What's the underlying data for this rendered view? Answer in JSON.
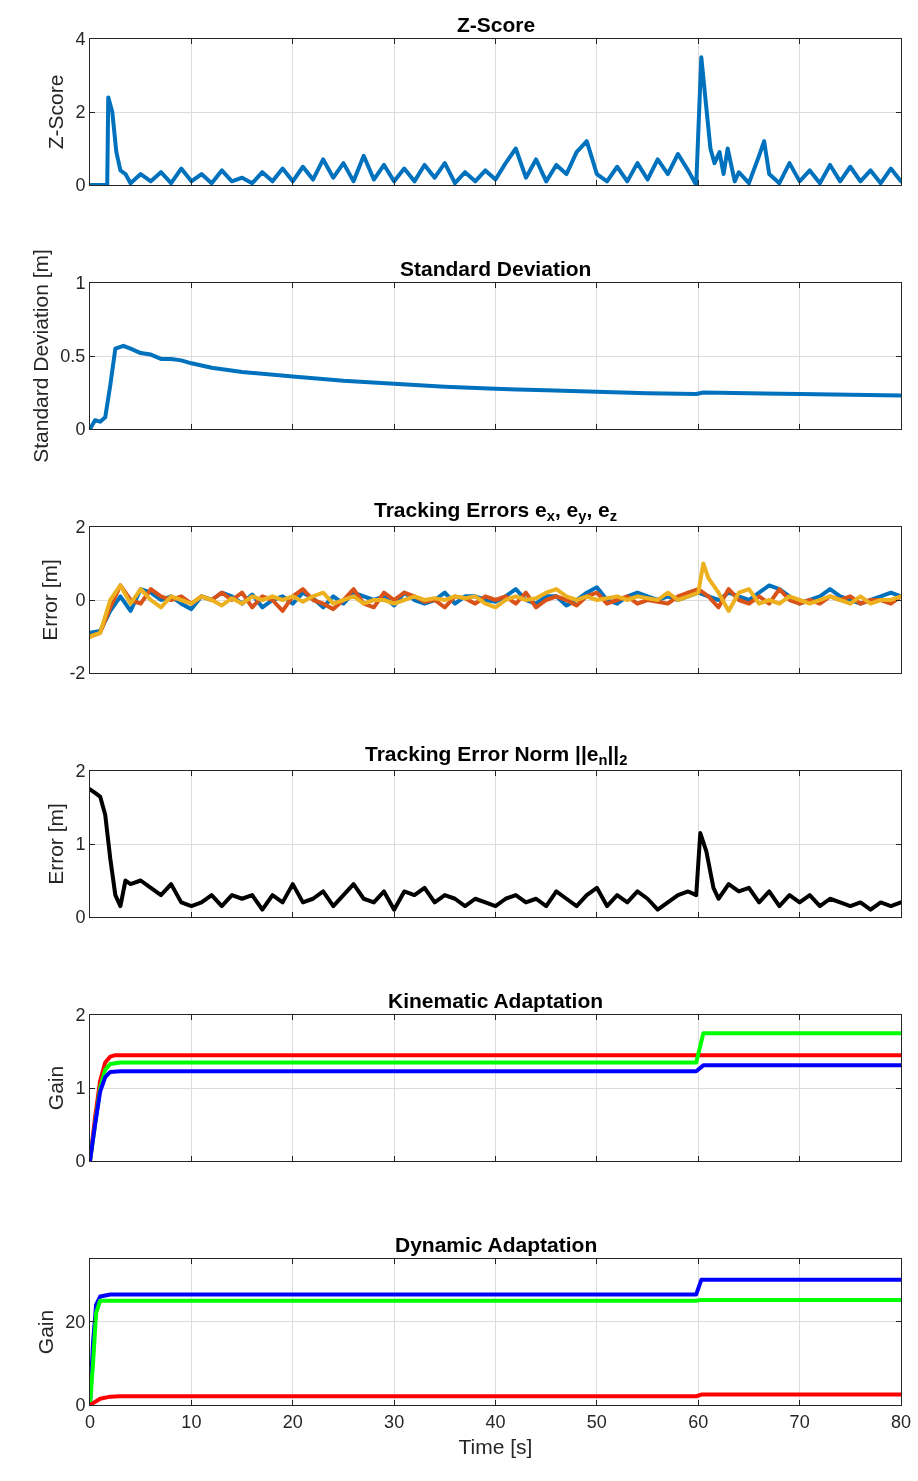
{
  "chart_data": [
    {
      "type": "line",
      "title": "Z-Score",
      "ylabel": "Z-Score",
      "xlim": [
        0,
        80
      ],
      "xticks": [
        0,
        10,
        20,
        30,
        40,
        50,
        60,
        70,
        80
      ],
      "ylim": [
        0,
        4
      ],
      "yticks": [
        0,
        2,
        4
      ],
      "grid": true,
      "tick_labels": "y",
      "series": [
        {
          "color": "#0072bd",
          "x": [
            0,
            1.7,
            1.8,
            2.2,
            2.6,
            3,
            3.5,
            4,
            5,
            6,
            7,
            8,
            9,
            10,
            11,
            12,
            13,
            14,
            15,
            16,
            17,
            18,
            19,
            20,
            21,
            22,
            23,
            24,
            25,
            26,
            27,
            28,
            29,
            30,
            31,
            32,
            33,
            34,
            35,
            36,
            37,
            38,
            39,
            40,
            41,
            42,
            43,
            44,
            45,
            46,
            47,
            48,
            49,
            50,
            51,
            52,
            53,
            54,
            55,
            56,
            57,
            58,
            59,
            59.8,
            60.3,
            61.2,
            61.6,
            62.1,
            62.5,
            62.9,
            63.6,
            64,
            65,
            66,
            66.5,
            67,
            68,
            69,
            70,
            71,
            72,
            73,
            74,
            75,
            76,
            77,
            78,
            79,
            80
          ],
          "values": [
            0,
            0,
            2.4,
            2.0,
            0.9,
            0.4,
            0.3,
            0.05,
            0.3,
            0.1,
            0.35,
            0.05,
            0.45,
            0.1,
            0.3,
            0.05,
            0.4,
            0.1,
            0.2,
            0.05,
            0.35,
            0.1,
            0.45,
            0.1,
            0.5,
            0.15,
            0.7,
            0.2,
            0.6,
            0.1,
            0.8,
            0.15,
            0.55,
            0.1,
            0.45,
            0.1,
            0.55,
            0.2,
            0.6,
            0.05,
            0.35,
            0.1,
            0.4,
            0.15,
            0.6,
            1.0,
            0.2,
            0.7,
            0.1,
            0.55,
            0.3,
            0.9,
            1.2,
            0.3,
            0.1,
            0.5,
            0.1,
            0.6,
            0.15,
            0.7,
            0.3,
            0.85,
            0.4,
            0,
            3.5,
            1.0,
            0.6,
            0.9,
            0.3,
            1.0,
            0.1,
            0.35,
            0.05,
            0.8,
            1.2,
            0.3,
            0.05,
            0.6,
            0.1,
            0.4,
            0.05,
            0.55,
            0.1,
            0.5,
            0.1,
            0.4,
            0.05,
            0.45,
            0.1
          ]
        }
      ]
    },
    {
      "type": "line",
      "title": "Standard Deviation",
      "ylabel": "Standard Deviation [m]",
      "xlim": [
        0,
        80
      ],
      "xticks": [
        0,
        10,
        20,
        30,
        40,
        50,
        60,
        70,
        80
      ],
      "ylim": [
        0,
        1
      ],
      "yticks": [
        0,
        0.5,
        1
      ],
      "grid": true,
      "tick_labels": "y",
      "series": [
        {
          "color": "#0072bd",
          "x": [
            0,
            0.5,
            1,
            1.5,
            2,
            2.5,
            3.3,
            4,
            5,
            6,
            7,
            8,
            9,
            10,
            12,
            15,
            20,
            25,
            30,
            35,
            40,
            45,
            50,
            55,
            59.8,
            60.5,
            65,
            70,
            75,
            80
          ],
          "values": [
            0,
            0.06,
            0.05,
            0.08,
            0.3,
            0.55,
            0.57,
            0.55,
            0.52,
            0.51,
            0.48,
            0.48,
            0.47,
            0.45,
            0.42,
            0.39,
            0.36,
            0.33,
            0.31,
            0.29,
            0.275,
            0.265,
            0.255,
            0.245,
            0.24,
            0.25,
            0.245,
            0.24,
            0.235,
            0.23
          ]
        }
      ]
    },
    {
      "type": "line",
      "title": "Tracking Errors e$_{x}$, e$_{y}$, e$_{z}$",
      "ylabel": "Error [m]",
      "xlim": [
        0,
        80
      ],
      "xticks": [
        0,
        10,
        20,
        30,
        40,
        50,
        60,
        70,
        80
      ],
      "ylim": [
        -2,
        2
      ],
      "yticks": [
        -2,
        0,
        2
      ],
      "grid": true,
      "tick_labels": "y",
      "series": [
        {
          "color": "#0072bd",
          "x": [
            0,
            1,
            2,
            3,
            4,
            5,
            6,
            7,
            8,
            9,
            10,
            11,
            12,
            13,
            14,
            15,
            16,
            17,
            18,
            19,
            20,
            21,
            22,
            23,
            24,
            25,
            26,
            27,
            28,
            29,
            30,
            31,
            32,
            33,
            34,
            35,
            36,
            37,
            38,
            39,
            40,
            41,
            42,
            43,
            44,
            45,
            46,
            47,
            48,
            49,
            50,
            51,
            52,
            53,
            54,
            55,
            56,
            57,
            58,
            59,
            60,
            61,
            62,
            63,
            64,
            65,
            66,
            67,
            68,
            69,
            70,
            71,
            72,
            73,
            74,
            75,
            76,
            77,
            78,
            79,
            80
          ],
          "values": [
            -0.9,
            -0.85,
            -0.3,
            0.1,
            -0.3,
            0.3,
            0.2,
            0.0,
            0.1,
            -0.1,
            -0.25,
            0.1,
            0.0,
            0.2,
            0.1,
            -0.1,
            0.15,
            -0.2,
            0.0,
            0.1,
            -0.1,
            0.2,
            0.05,
            -0.2,
            0.1,
            -0.1,
            0.2,
            0.1,
            0.0,
            0.1,
            -0.15,
            0.2,
            0.0,
            -0.1,
            0.0,
            0.2,
            -0.1,
            0.1,
            0.1,
            0.0,
            -0.05,
            0.1,
            0.3,
            0.0,
            -0.1,
            0.1,
            0.1,
            -0.15,
            0.0,
            0.2,
            0.35,
            0.0,
            -0.1,
            0.1,
            0.2,
            0.1,
            0.0,
            0.1,
            0.0,
            0.1,
            0.2,
            0.1,
            0.0,
            0.2,
            0.1,
            0.0,
            0.2,
            0.4,
            0.3,
            0.1,
            -0.1,
            0.0,
            0.1,
            0.3,
            0.1,
            0.0,
            -0.1,
            0.0,
            0.1,
            0.2,
            0.1
          ]
        },
        {
          "color": "#d95319",
          "x": [
            0,
            1,
            2,
            3,
            4,
            5,
            6,
            7,
            8,
            9,
            10,
            11,
            12,
            13,
            14,
            15,
            16,
            17,
            18,
            19,
            20,
            21,
            22,
            23,
            24,
            25,
            26,
            27,
            28,
            29,
            30,
            31,
            32,
            33,
            34,
            35,
            36,
            37,
            38,
            39,
            40,
            41,
            42,
            43,
            44,
            45,
            46,
            47,
            48,
            49,
            50,
            51,
            52,
            53,
            54,
            55,
            56,
            57,
            58,
            59,
            60,
            61,
            62,
            63,
            64,
            65,
            66,
            67,
            68,
            69,
            70,
            71,
            72,
            73,
            74,
            75,
            76,
            77,
            78,
            79,
            80
          ],
          "values": [
            -1.0,
            -0.9,
            -0.2,
            0.4,
            0.0,
            -0.1,
            0.3,
            0.1,
            0.0,
            0.1,
            -0.1,
            0.1,
            0.0,
            0.2,
            0.0,
            0.2,
            -0.2,
            0.1,
            0.0,
            -0.3,
            0.1,
            0.3,
            0.0,
            -0.1,
            -0.25,
            0.0,
            0.3,
            -0.1,
            -0.2,
            0.2,
            0.0,
            0.2,
            0.1,
            -0.05,
            0.0,
            -0.2,
            0.1,
            0.05,
            -0.1,
            0.1,
            0.0,
            0.1,
            -0.1,
            0.2,
            -0.2,
            0.0,
            0.1,
            0.0,
            -0.15,
            0.1,
            0.2,
            -0.1,
            0.0,
            0.1,
            -0.1,
            0.0,
            -0.05,
            -0.1,
            0.1,
            0.2,
            0.3,
            0.1,
            -0.2,
            0.3,
            0.0,
            -0.1,
            0.1,
            -0.1,
            0.3,
            0.0,
            -0.1,
            0.0,
            -0.1,
            0.1,
            0.0,
            0.1,
            -0.1,
            0.0,
            0.0,
            -0.1,
            0.1
          ]
        },
        {
          "color": "#edb120",
          "x": [
            0,
            1,
            2,
            3,
            4,
            5,
            6,
            7,
            8,
            9,
            10,
            11,
            12,
            13,
            14,
            15,
            16,
            17,
            18,
            19,
            20,
            21,
            22,
            23,
            24,
            25,
            26,
            27,
            28,
            29,
            30,
            31,
            32,
            33,
            34,
            35,
            36,
            37,
            38,
            39,
            40,
            41,
            42,
            43,
            44,
            45,
            46,
            47,
            48,
            49,
            50,
            51,
            52,
            53,
            54,
            55,
            56,
            57,
            58,
            59,
            60,
            60.5,
            61,
            62,
            63,
            64,
            65,
            66,
            67,
            68,
            69,
            70,
            71,
            72,
            73,
            74,
            75,
            76,
            77,
            78,
            79,
            80
          ],
          "values": [
            -1.0,
            -0.9,
            0.0,
            0.4,
            -0.1,
            0.3,
            0.0,
            -0.2,
            0.1,
            0.0,
            -0.1,
            0.1,
            0.0,
            -0.15,
            0.05,
            -0.1,
            0.1,
            0.0,
            0.1,
            0.0,
            0.1,
            -0.05,
            0.1,
            0.2,
            -0.1,
            0.0,
            0.1,
            -0.1,
            0.0,
            0.0,
            -0.1,
            0.0,
            0.1,
            0.0,
            0.05,
            0.0,
            0.1,
            0.05,
            0.1,
            -0.1,
            -0.2,
            0.0,
            0.1,
            0.0,
            0.05,
            0.2,
            0.3,
            0.1,
            0.0,
            0.1,
            0.0,
            0.05,
            0.1,
            0.0,
            0.1,
            0.05,
            0.0,
            0.2,
            0.0,
            0.1,
            0.2,
            1.0,
            0.6,
            0.2,
            -0.3,
            0.2,
            0.3,
            -0.1,
            0.0,
            -0.1,
            0.1,
            0.0,
            -0.1,
            0.0,
            0.1,
            0.0,
            -0.1,
            0.1,
            -0.1,
            0.0,
            0.0,
            0.1
          ]
        }
      ]
    },
    {
      "type": "line",
      "title": "Tracking Error Norm ||e$_{n}$||$_{2}$",
      "ylabel": "Error [m]",
      "xlim": [
        0,
        80
      ],
      "xticks": [
        0,
        10,
        20,
        30,
        40,
        50,
        60,
        70,
        80
      ],
      "ylim": [
        0,
        2
      ],
      "yticks": [
        0,
        1,
        2
      ],
      "grid": true,
      "tick_labels": "y",
      "series": [
        {
          "color": "#000000",
          "x": [
            0,
            0.5,
            1,
            1.5,
            2,
            2.5,
            3,
            3.5,
            4,
            5,
            6,
            7,
            8,
            9,
            10,
            11,
            12,
            13,
            14,
            15,
            16,
            17,
            18,
            19,
            20,
            21,
            22,
            23,
            24,
            25,
            26,
            27,
            28,
            29,
            30,
            31,
            32,
            33,
            34,
            35,
            36,
            37,
            38,
            39,
            40,
            41,
            42,
            43,
            44,
            45,
            46,
            47,
            48,
            49,
            50,
            51,
            52,
            53,
            54,
            55,
            56,
            57,
            58,
            59,
            59.8,
            60.2,
            60.8,
            61.5,
            62,
            63,
            64,
            65,
            66,
            67,
            68,
            69,
            70,
            71,
            72,
            73,
            74,
            75,
            76,
            77,
            78,
            79,
            80
          ],
          "values": [
            1.75,
            1.7,
            1.65,
            1.4,
            0.8,
            0.3,
            0.15,
            0.5,
            0.45,
            0.5,
            0.4,
            0.3,
            0.45,
            0.2,
            0.15,
            0.2,
            0.3,
            0.15,
            0.3,
            0.25,
            0.3,
            0.1,
            0.3,
            0.2,
            0.45,
            0.2,
            0.25,
            0.35,
            0.15,
            0.3,
            0.45,
            0.25,
            0.2,
            0.35,
            0.1,
            0.35,
            0.3,
            0.4,
            0.2,
            0.3,
            0.25,
            0.15,
            0.25,
            0.2,
            0.15,
            0.25,
            0.3,
            0.2,
            0.25,
            0.15,
            0.35,
            0.25,
            0.15,
            0.3,
            0.4,
            0.15,
            0.3,
            0.2,
            0.35,
            0.25,
            0.1,
            0.2,
            0.3,
            0.35,
            0.3,
            1.15,
            0.9,
            0.4,
            0.25,
            0.45,
            0.35,
            0.4,
            0.2,
            0.35,
            0.15,
            0.3,
            0.2,
            0.3,
            0.15,
            0.25,
            0.2,
            0.15,
            0.2,
            0.1,
            0.2,
            0.15,
            0.2
          ]
        }
      ]
    },
    {
      "type": "line",
      "title": "Kinematic Adaptation",
      "ylabel": "Gain",
      "xlim": [
        0,
        80
      ],
      "xticks": [
        0,
        10,
        20,
        30,
        40,
        50,
        60,
        70,
        80
      ],
      "ylim": [
        0,
        2
      ],
      "yticks": [
        0,
        1,
        2
      ],
      "grid": true,
      "tick_labels": "y",
      "series": [
        {
          "color": "#ff0000",
          "x": [
            0,
            0.5,
            1,
            1.5,
            2,
            2.5,
            60,
            80
          ],
          "values": [
            0,
            0.6,
            1.1,
            1.35,
            1.43,
            1.45,
            1.45,
            1.45
          ]
        },
        {
          "color": "#00ff00",
          "x": [
            0,
            0.5,
            1,
            1.5,
            2,
            3,
            59.8,
            60.5,
            80
          ],
          "values": [
            0,
            0.5,
            1.0,
            1.25,
            1.33,
            1.35,
            1.35,
            1.75,
            1.75
          ]
        },
        {
          "color": "#0000ff",
          "x": [
            0,
            0.5,
            1,
            1.5,
            2,
            3,
            59.8,
            60.5,
            80
          ],
          "values": [
            0,
            0.5,
            0.95,
            1.15,
            1.22,
            1.23,
            1.23,
            1.31,
            1.31
          ]
        }
      ]
    },
    {
      "type": "line",
      "title": "Dynamic Adaptation",
      "ylabel": "Gain",
      "xlabel": "Time [s]",
      "xlim": [
        0,
        80
      ],
      "xticks": [
        0,
        10,
        20,
        30,
        40,
        50,
        60,
        70,
        80
      ],
      "ylim": [
        0,
        35
      ],
      "yticks": [
        0,
        20
      ],
      "grid": true,
      "series": [
        {
          "color": "#0000ff",
          "x": [
            0,
            0.3,
            0.6,
            1,
            2,
            59.8,
            60.3,
            80
          ],
          "values": [
            0,
            15,
            24,
            26,
            26.5,
            26.5,
            30,
            30
          ]
        },
        {
          "color": "#00ff00",
          "x": [
            0,
            0.3,
            0.6,
            1,
            59.8,
            60.3,
            80
          ],
          "values": [
            0,
            10,
            22,
            25,
            25,
            25.2,
            25.2
          ]
        },
        {
          "color": "#ff0000",
          "x": [
            0,
            1,
            2,
            3,
            59.8,
            60.3,
            80
          ],
          "values": [
            0,
            1.5,
            2.0,
            2.1,
            2.1,
            2.5,
            2.5
          ]
        }
      ]
    }
  ]
}
